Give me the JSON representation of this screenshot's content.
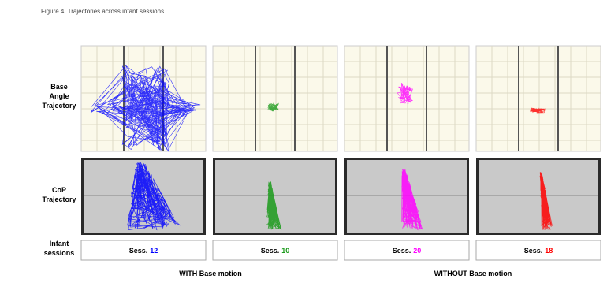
{
  "caption": "Figure 4. Trajectories across infant sessions",
  "row_labels": [
    "Base Angle Trajectory",
    "CoP Trajectory",
    "Infant sessions"
  ],
  "sessions": [
    {
      "prefix": "Sess.",
      "number": "12",
      "color": "#0000ff"
    },
    {
      "prefix": "Sess.",
      "number": "10",
      "color": "#1a9a1a"
    },
    {
      "prefix": "Sess.",
      "number": "20",
      "color": "#ff00ff"
    },
    {
      "prefix": "Sess.",
      "number": "18",
      "color": "#ff0000"
    }
  ],
  "group_labels": [
    "WITH Base motion",
    "WITHOUT Base motion"
  ]
}
